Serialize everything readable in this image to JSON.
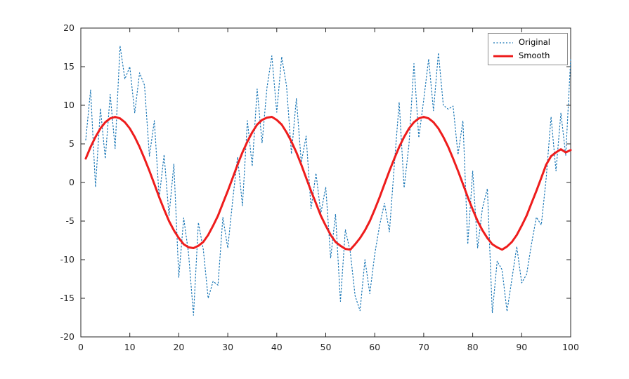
{
  "figure": {
    "background": "#ffffff",
    "axis_color": "#262626",
    "tick_label_color": "#262626",
    "axes": {
      "x_ticks": [
        0,
        10,
        20,
        30,
        40,
        50,
        60,
        70,
        80,
        90,
        100
      ],
      "y_ticks": [
        -20,
        -15,
        -10,
        -5,
        0,
        5,
        10,
        15,
        20
      ]
    },
    "legend": {
      "position": "top-right",
      "items": [
        {
          "label": "Original"
        },
        {
          "label": "Smooth"
        }
      ]
    }
  },
  "chart_data": {
    "type": "line",
    "title": "",
    "xlabel": "",
    "ylabel": "",
    "xlim": [
      0,
      100
    ],
    "ylim": [
      -20,
      20
    ],
    "grid": false,
    "legend_position": "top-right",
    "x": [
      1,
      2,
      3,
      4,
      5,
      6,
      7,
      8,
      9,
      10,
      11,
      12,
      13,
      14,
      15,
      16,
      17,
      18,
      19,
      20,
      21,
      22,
      23,
      24,
      25,
      26,
      27,
      28,
      29,
      30,
      31,
      32,
      33,
      34,
      35,
      36,
      37,
      38,
      39,
      40,
      41,
      42,
      43,
      44,
      45,
      46,
      47,
      48,
      49,
      50,
      51,
      52,
      53,
      54,
      55,
      56,
      57,
      58,
      59,
      60,
      61,
      62,
      63,
      64,
      65,
      66,
      67,
      68,
      69,
      70,
      71,
      72,
      73,
      74,
      75,
      76,
      77,
      78,
      79,
      80,
      81,
      82,
      83,
      84,
      85,
      86,
      87,
      88,
      89,
      90,
      91,
      92,
      93,
      94,
      95,
      96,
      97,
      98,
      99,
      100
    ],
    "series": [
      {
        "name": "Original",
        "style": "dotted",
        "color": "#1775b5",
        "width": 1.2,
        "values": [
          5.5,
          12.0,
          -0.6,
          9.6,
          3.1,
          11.4,
          4.4,
          17.7,
          13.4,
          15.0,
          9.0,
          14.2,
          12.6,
          3.4,
          8.0,
          -2.0,
          3.6,
          -4.3,
          2.4,
          -12.3,
          -4.6,
          -9.2,
          -17.2,
          -5.2,
          -8.7,
          -15.0,
          -12.8,
          -13.3,
          -4.5,
          -8.5,
          -2.3,
          3.3,
          -3.0,
          8.0,
          2.1,
          12.1,
          5.1,
          12.3,
          16.4,
          9.1,
          16.3,
          12.5,
          3.7,
          10.9,
          2.6,
          6.0,
          -3.4,
          1.2,
          -4.0,
          -0.6,
          -9.8,
          -4.1,
          -15.4,
          -6.1,
          -9.0,
          -14.7,
          -16.6,
          -10.0,
          -14.4,
          -9.3,
          -5.5,
          -2.7,
          -6.4,
          2.3,
          10.4,
          -0.7,
          5.0,
          15.4,
          5.8,
          10.7,
          16.0,
          9.3,
          16.8,
          10.0,
          9.5,
          9.9,
          3.6,
          8.0,
          -8.0,
          1.5,
          -8.5,
          -3.3,
          -0.8,
          -16.9,
          -10.2,
          -11.3,
          -16.7,
          -12.5,
          -8.3,
          -13.0,
          -11.9,
          -8.0,
          -4.5,
          -5.5,
          0.5,
          8.5,
          1.5,
          9.0,
          3.5,
          16.0
        ]
      },
      {
        "name": "Smooth",
        "style": "solid",
        "color": "#ee1c1c",
        "width": 3,
        "values": [
          3.1,
          4.6,
          5.9,
          7.0,
          7.8,
          8.3,
          8.5,
          8.3,
          7.8,
          7.0,
          5.9,
          4.6,
          3.1,
          1.5,
          -0.2,
          -1.9,
          -3.5,
          -5.0,
          -6.2,
          -7.2,
          -8.0,
          -8.4,
          -8.5,
          -8.2,
          -7.7,
          -6.8,
          -5.6,
          -4.3,
          -2.7,
          -1.1,
          0.6,
          2.3,
          3.9,
          5.3,
          6.5,
          7.5,
          8.1,
          8.4,
          8.5,
          8.1,
          7.5,
          6.5,
          5.3,
          3.9,
          2.3,
          0.6,
          -1.1,
          -2.7,
          -4.3,
          -5.6,
          -6.8,
          -7.7,
          -8.2,
          -8.6,
          -8.7,
          -8.0,
          -7.2,
          -6.2,
          -5.0,
          -3.5,
          -1.9,
          -0.2,
          1.5,
          3.1,
          4.6,
          5.9,
          7.0,
          7.8,
          8.3,
          8.5,
          8.3,
          7.8,
          7.0,
          5.9,
          4.6,
          3.1,
          1.5,
          -0.2,
          -1.9,
          -3.5,
          -5.0,
          -6.2,
          -7.2,
          -8.0,
          -8.4,
          -8.7,
          -8.3,
          -7.7,
          -6.8,
          -5.6,
          -4.3,
          -2.7,
          -1.1,
          0.6,
          2.3,
          3.4,
          3.9,
          4.3,
          3.9,
          4.2
        ]
      }
    ]
  }
}
